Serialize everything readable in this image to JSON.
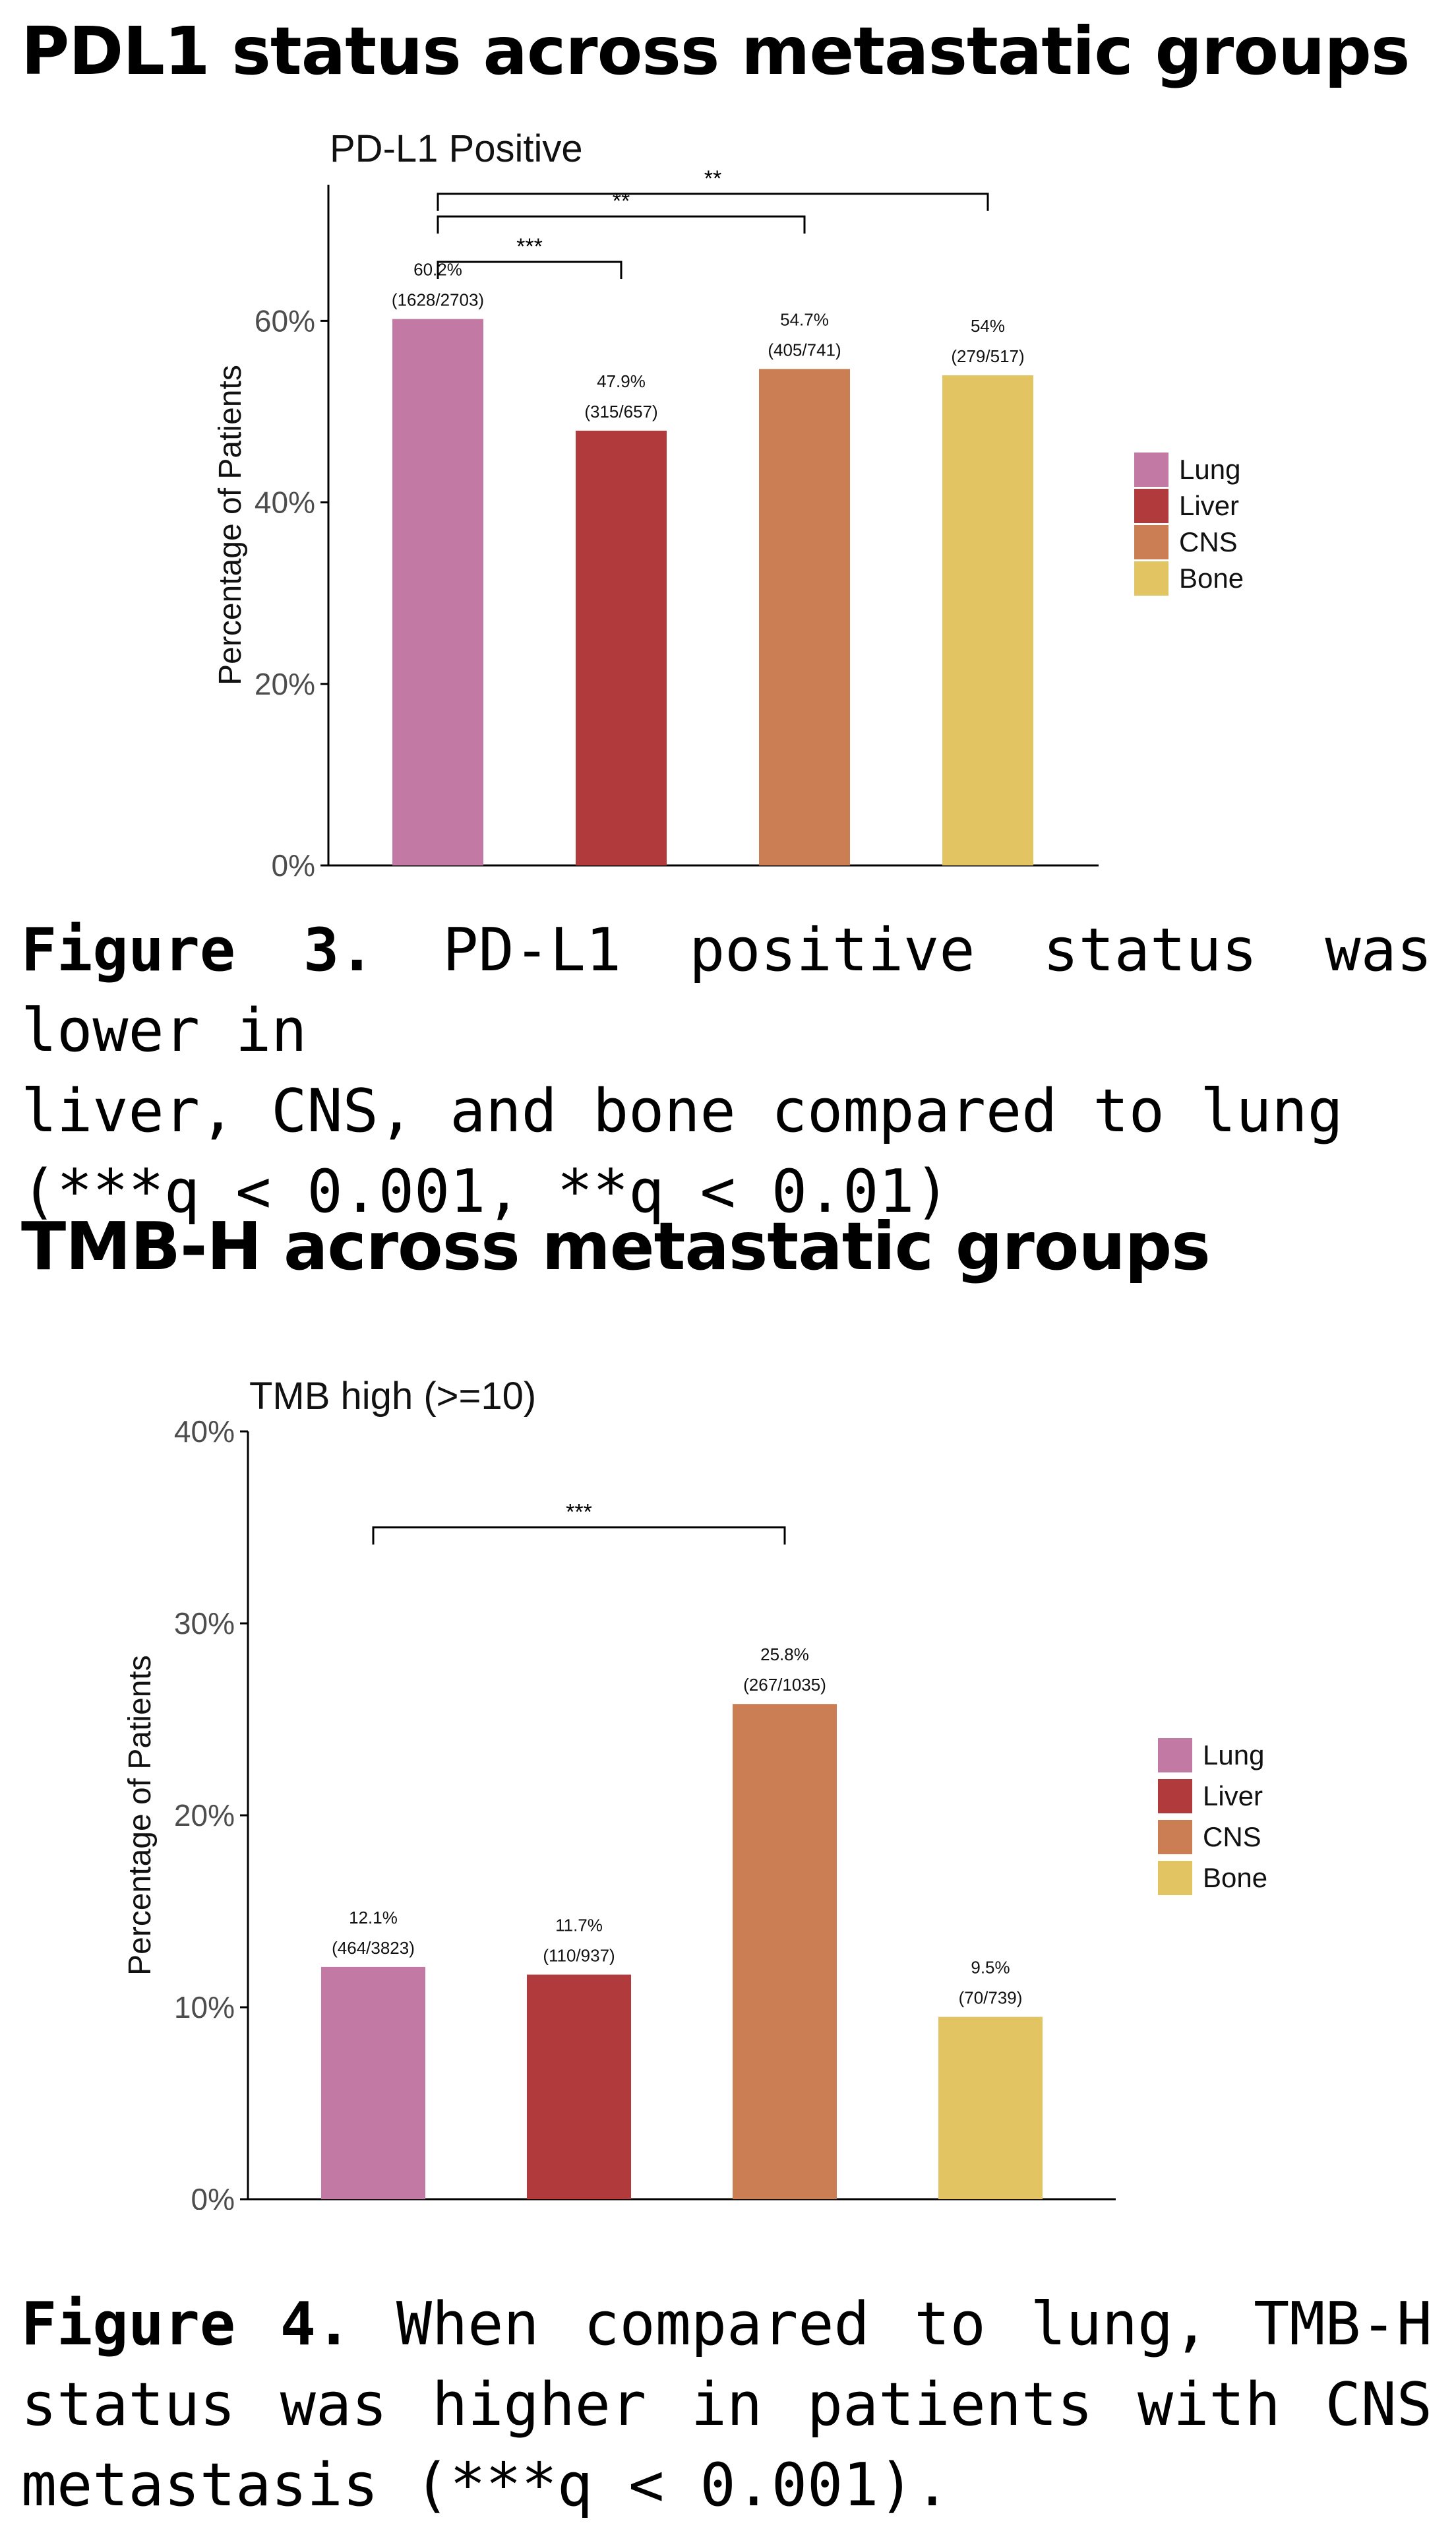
{
  "headings": {
    "pdl1": "PDL1 status across metastatic groups",
    "tmb": "TMB-H across metastatic groups"
  },
  "captions": {
    "figure3": {
      "label": "Figure 3.",
      "line1": "PD-L1 positive status was lower in",
      "line2": "liver, CNS, and bone compared to lung",
      "line3": "(***q < 0.001, **q < 0.01)"
    },
    "figure4": {
      "label": "Figure 4.",
      "line1": "When compared to lung, TMB-H",
      "line2": "status was higher in patients with CNS",
      "line3": "metastasis (***q < 0.001)."
    }
  },
  "chart_data": [
    {
      "type": "bar",
      "title": "PD-L1 Positive",
      "xlabel": "",
      "ylabel": "Percentage of Patients",
      "ylim": [
        0,
        75
      ],
      "yticks": [
        0,
        20,
        40,
        60
      ],
      "ytick_labels": [
        "0%",
        "20%",
        "40%",
        "60%"
      ],
      "categories": [
        "Lung",
        "Liver",
        "CNS",
        "Bone"
      ],
      "values": [
        60.2,
        47.9,
        54.7,
        54
      ],
      "labels": [
        "60.2%",
        "47.9%",
        "54.7%",
        "54%"
      ],
      "counts": [
        "(1628/2703)",
        "(315/657)",
        "(405/741)",
        "(279/517)"
      ],
      "colors": [
        "#c27aa5",
        "#b03a3c",
        "#cb7d54",
        "#e3c462"
      ],
      "legend": [
        "Lung",
        "Liver",
        "CNS",
        "Bone"
      ],
      "legend_position": "right",
      "comparisons": [
        {
          "from": 0,
          "to": 1,
          "label": "***",
          "at": 66.5
        },
        {
          "from": 0,
          "to": 2,
          "label": "**",
          "at": 71.5
        },
        {
          "from": 0,
          "to": 3,
          "label": "**",
          "at": 74.0
        }
      ]
    },
    {
      "type": "bar",
      "title": "TMB high (>=10)",
      "xlabel": "",
      "ylabel": "Percentage of Patients",
      "ylim": [
        0,
        40
      ],
      "yticks": [
        0,
        10,
        20,
        30,
        40
      ],
      "ytick_labels": [
        "0%",
        "10%",
        "20%",
        "30%",
        "40%"
      ],
      "categories": [
        "Lung",
        "Liver",
        "CNS",
        "Bone"
      ],
      "values": [
        12.1,
        11.7,
        25.8,
        9.5
      ],
      "labels": [
        "12.1%",
        "11.7%",
        "25.8%",
        "9.5%"
      ],
      "counts": [
        "(464/3823)",
        "(110/937)",
        "(267/1035)",
        "(70/739)"
      ],
      "colors": [
        "#c27aa5",
        "#b03a3c",
        "#cb7d54",
        "#e3c462"
      ],
      "legend": [
        "Lung",
        "Liver",
        "CNS",
        "Bone"
      ],
      "legend_position": "right",
      "comparisons": [
        {
          "from": 0,
          "to": 2,
          "label": "***",
          "at": 35.0
        }
      ]
    }
  ]
}
